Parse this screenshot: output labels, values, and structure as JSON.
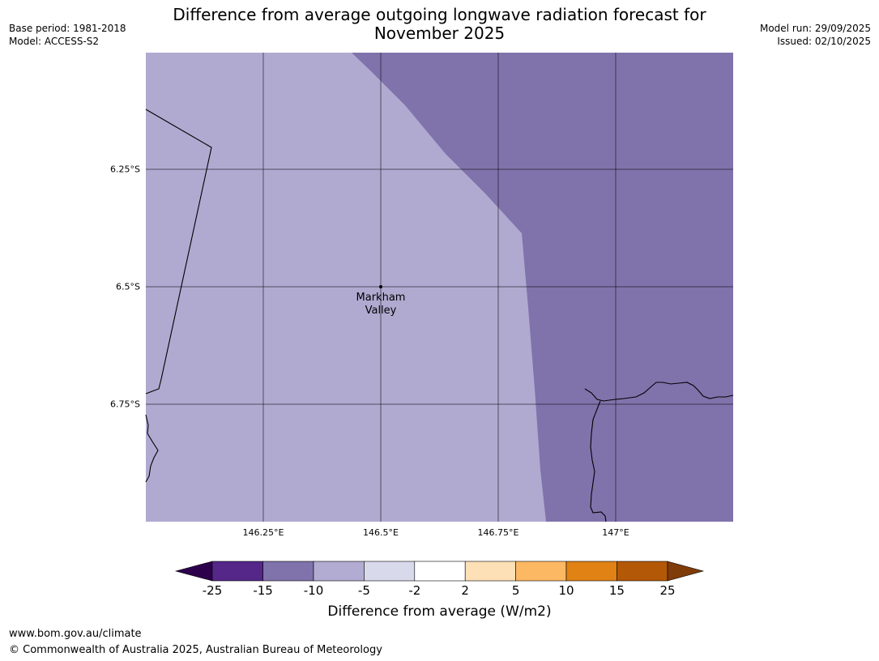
{
  "header": {
    "title_line1": "Difference from average outgoing longwave radiation forecast for",
    "title_line2": "November 2025",
    "base_period": "Base period: 1981-2018",
    "model": "Model: ACCESS-S2",
    "model_run": "Model run: 29/09/2025",
    "issued": "Issued: 02/10/2025"
  },
  "map": {
    "lat_labels": [
      "6.25°S",
      "6.5°S",
      "6.75°S"
    ],
    "lon_labels": [
      "146.25°E",
      "146.5°E",
      "146.75°E",
      "147°E"
    ],
    "place": {
      "name_line1": "Markham",
      "name_line2": "Valley",
      "lon": 146.5,
      "lat": -6.5
    },
    "region_colors": {
      "minus5_to_minus10": "#b0aad1",
      "minus10_to_minus15": "#8073ac"
    }
  },
  "colorbar": {
    "title": "Difference from average (W/m2)",
    "ticks": [
      "-25",
      "-15",
      "-10",
      "-5",
      "-2",
      "2",
      "5",
      "10",
      "15",
      "25"
    ],
    "under_color": "#2d004b",
    "over_color": "#7f3b08",
    "colors": [
      "#542788",
      "#8073ac",
      "#b2abd2",
      "#d8daeb",
      "#ffffff",
      "#fee0b6",
      "#fdb863",
      "#e08214",
      "#b35806"
    ]
  },
  "footer": {
    "url": "www.bom.gov.au/climate",
    "copyright": "© Commonwealth of Australia 2025, Australian Bureau of Meteorology"
  }
}
